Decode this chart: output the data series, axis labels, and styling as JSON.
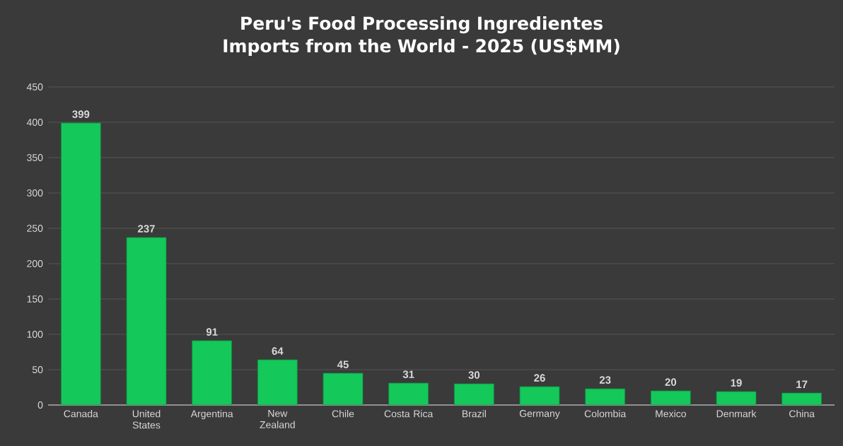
{
  "chart_data": {
    "type": "bar",
    "title": "Peru's Food Processing Ingredientes Imports from the World - 2025 (US$MM)",
    "categories": [
      "Canada",
      "United States",
      "Argentina",
      "New Zealand",
      "Chile",
      "Costa Rica",
      "Brazil",
      "Germany",
      "Colombia",
      "Mexico",
      "Denmark",
      "China"
    ],
    "values": [
      399,
      237,
      91,
      64,
      45,
      31,
      30,
      26,
      23,
      20,
      19,
      17
    ],
    "color": "#14c85a",
    "ylim": [
      0,
      450
    ],
    "yticks": [
      0,
      50,
      100,
      150,
      200,
      250,
      300,
      350,
      400,
      450
    ],
    "grid": "y",
    "data_labels": true
  }
}
